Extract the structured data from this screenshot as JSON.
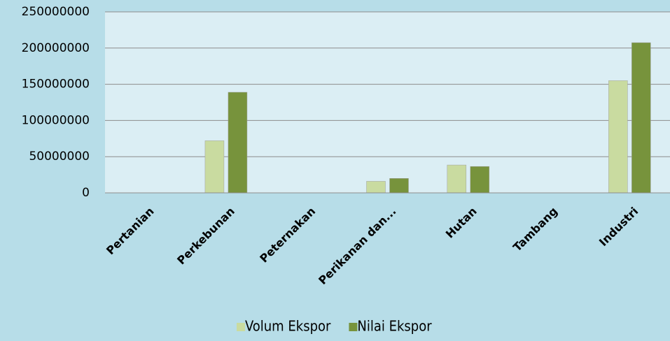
{
  "chart_data": {
    "type": "bar",
    "categories": [
      "Pertanian",
      "Perkebunan",
      "Peternakan",
      "Perikanan dan...",
      "Hutan",
      "Tambang",
      "Industri"
    ],
    "series": [
      {
        "name": "Volum Ekspor",
        "color": "#c9dba0",
        "values": [
          0,
          72000000,
          0,
          16000000,
          38500000,
          0,
          155000000
        ]
      },
      {
        "name": "Nilai Ekspor",
        "color": "#77933c",
        "values": [
          0,
          139000000,
          0,
          20000000,
          36500000,
          0,
          207500000
        ]
      }
    ],
    "ylim": [
      0,
      250000000
    ],
    "yticks": [
      0,
      50000000,
      100000000,
      150000000,
      200000000,
      250000000
    ],
    "grid": true,
    "legend": "bottom"
  }
}
